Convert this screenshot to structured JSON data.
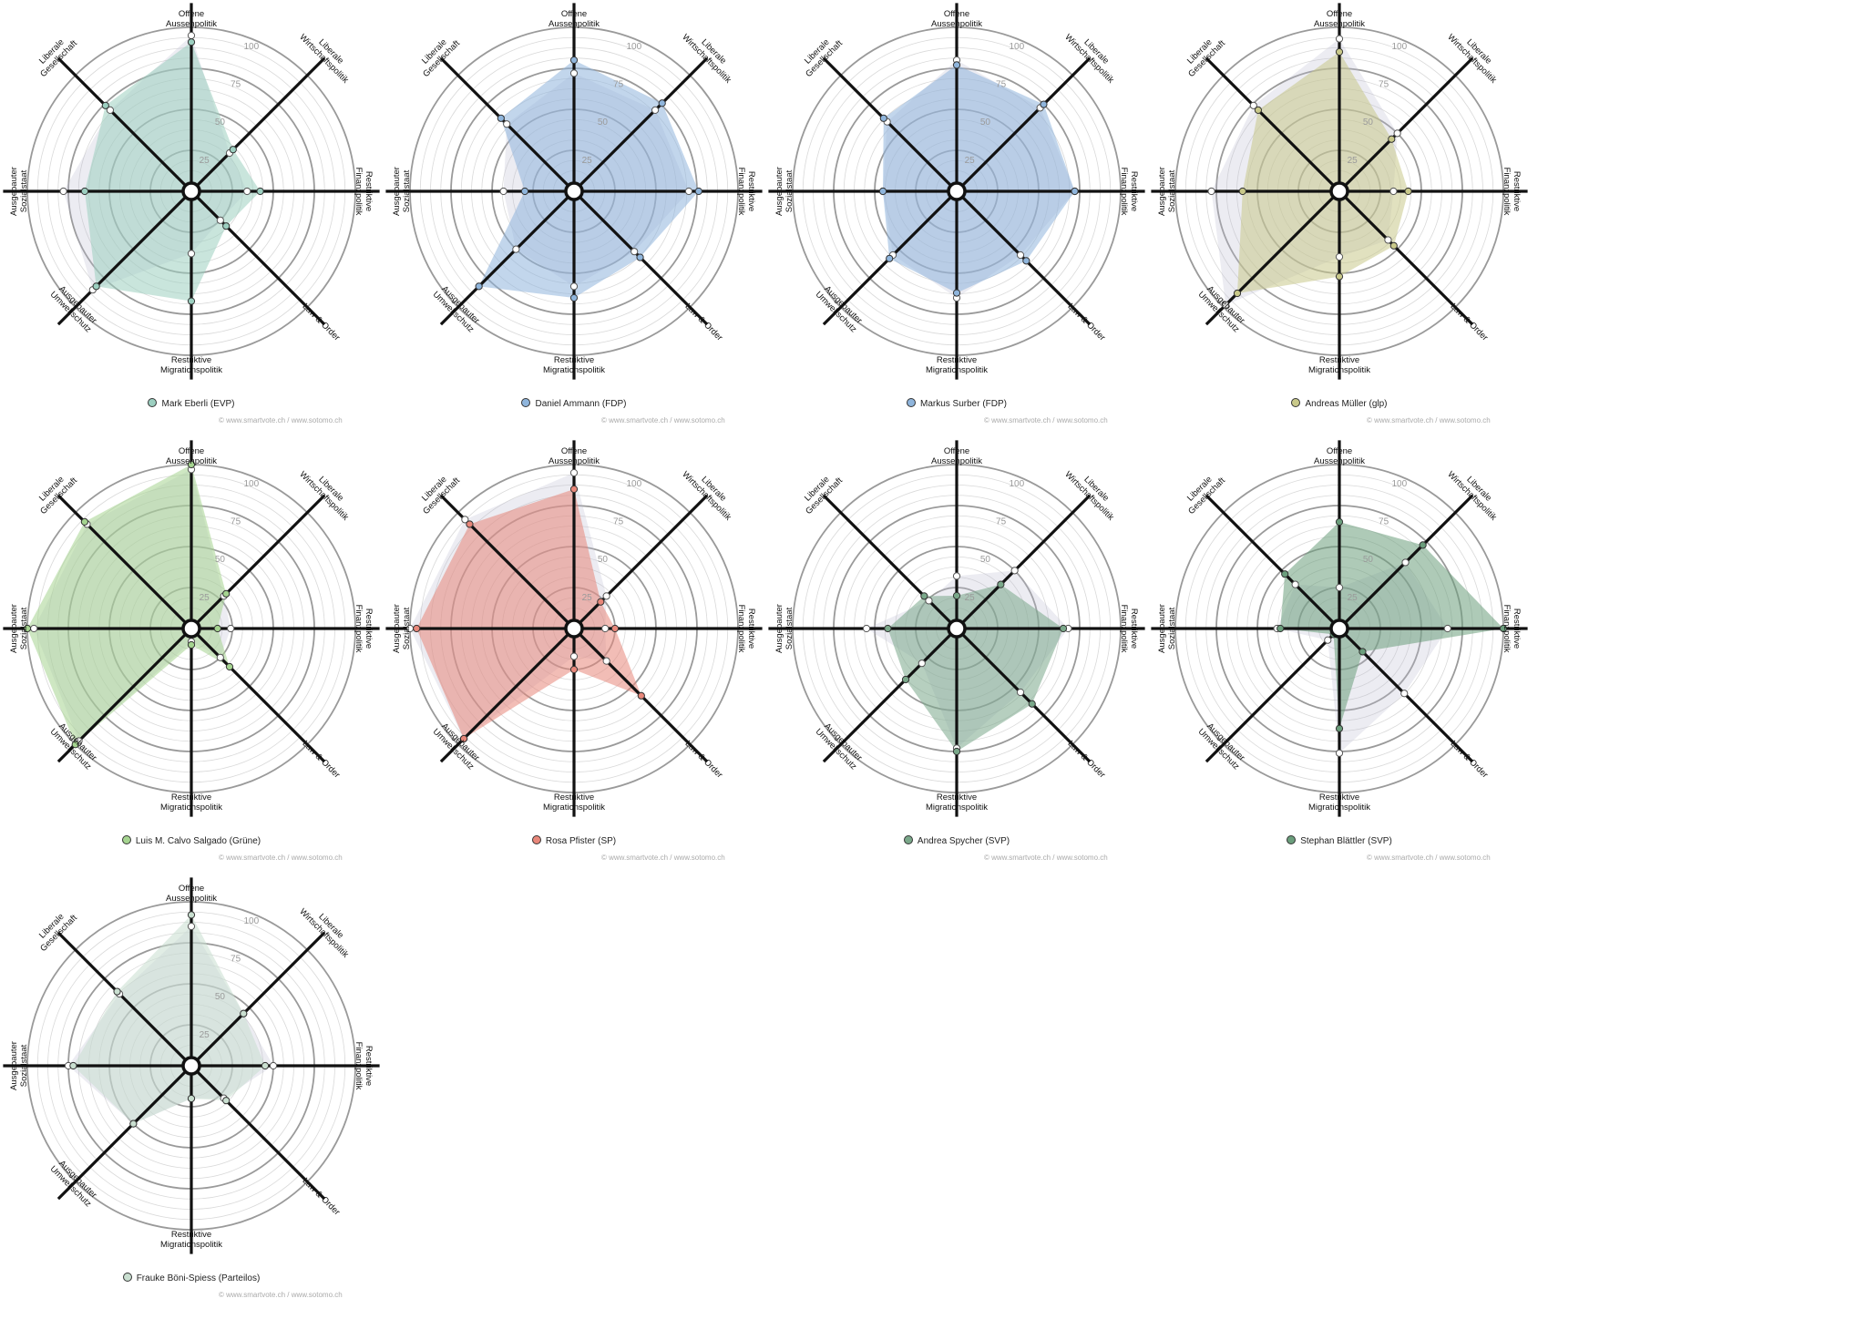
{
  "credit": "© www.smartvote.ch / www.sotomo.ch",
  "chart_data": [
    {
      "type": "radar",
      "candidate": "Mark Eberli (EVP)",
      "color": "#9ccfc0",
      "axes": [
        [
          "Offene",
          "Aussenpolitik"
        ],
        [
          "Liberale",
          "Wirtschaftspolitik"
        ],
        [
          "Restriktive",
          "Finanzpolitik"
        ],
        [
          "Law & Order"
        ],
        [
          "Restriktive",
          "Migrationspolitik"
        ],
        [
          "Ausgebauter",
          "Umweltschutz"
        ],
        [
          "Ausgebauter",
          "Sozialstaat"
        ],
        [
          "Liberale",
          "Gesellschaft"
        ]
      ],
      "ticks": [
        "25",
        "50",
        "75",
        "100"
      ],
      "rlim": [
        0,
        100
      ],
      "candidate_values": [
        91,
        36,
        42,
        30,
        67,
        82,
        65,
        74
      ],
      "comparison_values": [
        95,
        33,
        34,
        25,
        38,
        85,
        78,
        70
      ]
    },
    {
      "type": "radar",
      "candidate": "Daniel Ammann (FDP)",
      "color": "#8fb5dc",
      "axes": [
        [
          "Offene",
          "Aussenpolitik"
        ],
        [
          "Liberale",
          "Wirtschaftspolitik"
        ],
        [
          "Restriktive",
          "Finanzpolitik"
        ],
        [
          "Law & Order"
        ],
        [
          "Restriktive",
          "Migrationspolitik"
        ],
        [
          "Ausgebauter",
          "Umweltschutz"
        ],
        [
          "Ausgebauter",
          "Sozialstaat"
        ],
        [
          "Liberale",
          "Gesellschaft"
        ]
      ],
      "ticks": [
        "25",
        "50",
        "75",
        "100"
      ],
      "rlim": [
        0,
        100
      ],
      "candidate_values": [
        80,
        76,
        76,
        57,
        65,
        82,
        30,
        63
      ],
      "comparison_values": [
        72,
        70,
        70,
        52,
        58,
        50,
        43,
        58
      ]
    },
    {
      "type": "radar",
      "candidate": "Markus Surber (FDP)",
      "color": "#8fb5dc",
      "axes": [
        [
          "Offene",
          "Aussenpolitik"
        ],
        [
          "Liberale",
          "Wirtschaftspolitik"
        ],
        [
          "Restriktive",
          "Finanzpolitik"
        ],
        [
          "Law & Order"
        ],
        [
          "Restriktive",
          "Migrationspolitik"
        ],
        [
          "Ausgebauter",
          "Umweltschutz"
        ],
        [
          "Ausgebauter",
          "Sozialstaat"
        ],
        [
          "Liberale",
          "Gesellschaft"
        ]
      ],
      "ticks": [
        "25",
        "50",
        "75",
        "100"
      ],
      "rlim": [
        0,
        100
      ],
      "candidate_values": [
        77,
        75,
        72,
        60,
        62,
        58,
        45,
        63
      ],
      "comparison_values": [
        80,
        72,
        72,
        55,
        65,
        55,
        45,
        60
      ]
    },
    {
      "type": "radar",
      "candidate": "Andreas Müller (glp)",
      "color": "#c9c98a",
      "axes": [
        [
          "Offene",
          "Aussenpolitik"
        ],
        [
          "Liberale",
          "Wirtschaftspolitik"
        ],
        [
          "Restriktive",
          "Finanzpolitik"
        ],
        [
          "Law & Order"
        ],
        [
          "Restriktive",
          "Migrationspolitik"
        ],
        [
          "Ausgebauter",
          "Umweltschutz"
        ],
        [
          "Ausgebauter",
          "Sozialstaat"
        ],
        [
          "Liberale",
          "Gesellschaft"
        ]
      ],
      "ticks": [
        "25",
        "50",
        "75",
        "100"
      ],
      "rlim": [
        0,
        100
      ],
      "candidate_values": [
        85,
        45,
        42,
        47,
        52,
        88,
        59,
        70
      ],
      "comparison_values": [
        93,
        50,
        33,
        42,
        40,
        98,
        78,
        74
      ]
    },
    {
      "type": "radar",
      "candidate": "Luis M. Calvo Salgado (Grüne)",
      "color": "#a5d490",
      "axes": [
        [
          "Offene",
          "Aussenpolitik"
        ],
        [
          "Liberale",
          "Wirtschaftspolitik"
        ],
        [
          "Restriktive",
          "Finanzpolitik"
        ],
        [
          "Law & Order"
        ],
        [
          "Restriktive",
          "Migrationspolitik"
        ],
        [
          "Ausgebauter",
          "Umweltschutz"
        ],
        [
          "Ausgebauter",
          "Sozialstaat"
        ],
        [
          "Liberale",
          "Gesellschaft"
        ]
      ],
      "ticks": [
        "25",
        "50",
        "75",
        "100"
      ],
      "rlim": [
        0,
        100
      ],
      "candidate_values": [
        100,
        30,
        16,
        33,
        10,
        100,
        100,
        92
      ],
      "comparison_values": [
        97,
        28,
        24,
        25,
        8,
        97,
        96,
        90
      ]
    },
    {
      "type": "radar",
      "candidate": "Rosa Pfister (SP)",
      "color": "#e8877a",
      "axes": [
        [
          "Offene",
          "Aussenpolitik"
        ],
        [
          "Liberale",
          "Wirtschaftspolitik"
        ],
        [
          "Restriktive",
          "Finanzpolitik"
        ],
        [
          "Law & Order"
        ],
        [
          "Restriktive",
          "Migrationspolitik"
        ],
        [
          "Ausgebauter",
          "Umweltschutz"
        ],
        [
          "Ausgebauter",
          "Sozialstaat"
        ],
        [
          "Liberale",
          "Gesellschaft"
        ]
      ],
      "ticks": [
        "25",
        "50",
        "75",
        "100"
      ],
      "rlim": [
        0,
        100
      ],
      "candidate_values": [
        85,
        23,
        25,
        58,
        25,
        95,
        96,
        90
      ],
      "comparison_values": [
        95,
        28,
        19,
        28,
        17,
        95,
        100,
        94
      ]
    },
    {
      "type": "radar",
      "candidate": "Andrea Spycher (SVP)",
      "color": "#7aa88a",
      "axes": [
        [
          "Offene",
          "Aussenpolitik"
        ],
        [
          "Liberale",
          "Wirtschaftspolitik"
        ],
        [
          "Restriktive",
          "Finanzpolitik"
        ],
        [
          "Law & Order"
        ],
        [
          "Restriktive",
          "Migrationspolitik"
        ],
        [
          "Ausgebauter",
          "Umweltschutz"
        ],
        [
          "Ausgebauter",
          "Sozialstaat"
        ],
        [
          "Liberale",
          "Gesellschaft"
        ]
      ],
      "ticks": [
        "25",
        "50",
        "75",
        "100"
      ],
      "rlim": [
        0,
        100
      ],
      "candidate_values": [
        20,
        38,
        65,
        65,
        75,
        44,
        42,
        28
      ],
      "comparison_values": [
        32,
        50,
        68,
        55,
        73,
        30,
        55,
        24
      ]
    },
    {
      "type": "radar",
      "candidate": "Stephan Blättler (SVP)",
      "color": "#6b9e7c",
      "axes": [
        [
          "Offene",
          "Aussenpolitik"
        ],
        [
          "Liberale",
          "Wirtschaftspolitik"
        ],
        [
          "Restriktive",
          "Finanzpolitik"
        ],
        [
          "Law & Order"
        ],
        [
          "Restriktive",
          "Migrationspolitik"
        ],
        [
          "Ausgebauter",
          "Umweltschutz"
        ],
        [
          "Ausgebauter",
          "Sozialstaat"
        ],
        [
          "Liberale",
          "Gesellschaft"
        ]
      ],
      "ticks": [
        "25",
        "50",
        "75",
        "100"
      ],
      "rlim": [
        0,
        100
      ],
      "candidate_values": [
        65,
        72,
        100,
        20,
        61,
        5,
        36,
        47
      ],
      "comparison_values": [
        25,
        57,
        66,
        56,
        76,
        10,
        38,
        38
      ]
    },
    {
      "type": "radar",
      "candidate": "Frauke Böni-Spiess (Parteilos)",
      "color": "#c9dfd0",
      "axes": [
        [
          "Offene",
          "Aussenpolitik"
        ],
        [
          "Liberale",
          "Wirtschaftspolitik"
        ],
        [
          "Restriktive",
          "Finanzpolitik"
        ],
        [
          "Law & Order"
        ],
        [
          "Restriktive",
          "Migrationspolitik"
        ],
        [
          "Ausgebauter",
          "Umweltschutz"
        ],
        [
          "Ausgebauter",
          "Sozialstaat"
        ],
        [
          "Liberale",
          "Gesellschaft"
        ]
      ],
      "ticks": [
        "25",
        "50",
        "75",
        "100"
      ],
      "rlim": [
        0,
        100
      ],
      "candidate_values": [
        92,
        45,
        45,
        30,
        20,
        50,
        72,
        64
      ],
      "comparison_values": [
        85,
        45,
        50,
        28,
        20,
        50,
        75,
        62
      ]
    }
  ]
}
